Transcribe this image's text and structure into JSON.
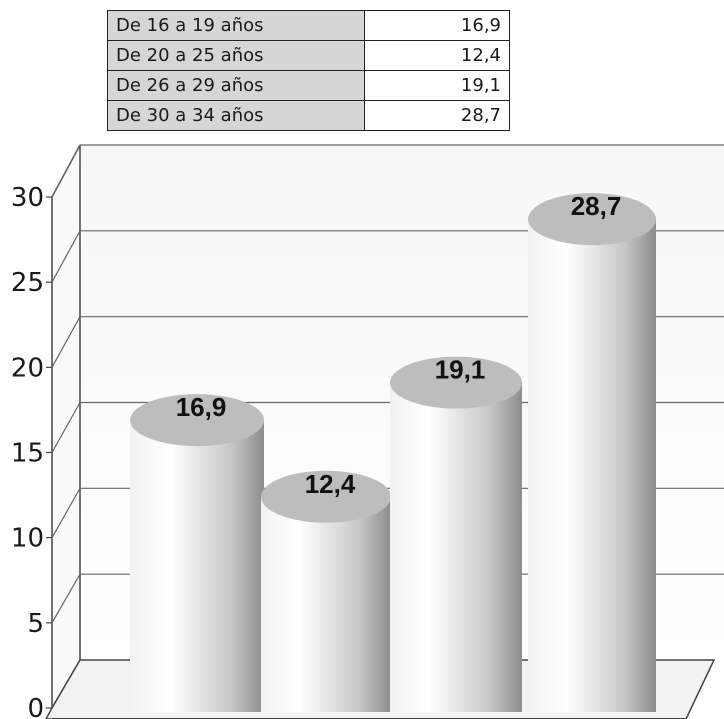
{
  "table": {
    "rows": [
      {
        "label": "De 16 a 19 años",
        "value": "16,9"
      },
      {
        "label": "De 20 a 25 años",
        "value": "12,4"
      },
      {
        "label": "De 26 a 29 años",
        "value": "19,1"
      },
      {
        "label": "De 30 a 34 años",
        "value": "28,7"
      }
    ]
  },
  "chart_data": {
    "type": "bar",
    "style": "3d-cylinder",
    "categories": [
      "De 16 a 19 años",
      "De 20 a 25 años",
      "De 26 a 29 años",
      "De 30 a 34 años"
    ],
    "values": [
      16.9,
      12.4,
      19.1,
      28.7
    ],
    "data_labels": [
      "16,9",
      "12,4",
      "19,1",
      "28,7"
    ],
    "y_ticks": [
      "0",
      "5",
      "10",
      "15",
      "20",
      "25",
      "30"
    ],
    "ylim": [
      0,
      30
    ],
    "grid": true,
    "colors": {
      "cylinder_light": "#ffffff",
      "cylinder_dark": "#8c8c8c",
      "cap": "#bdbdbd",
      "axis": "#444444",
      "grid": "#666666"
    }
  }
}
